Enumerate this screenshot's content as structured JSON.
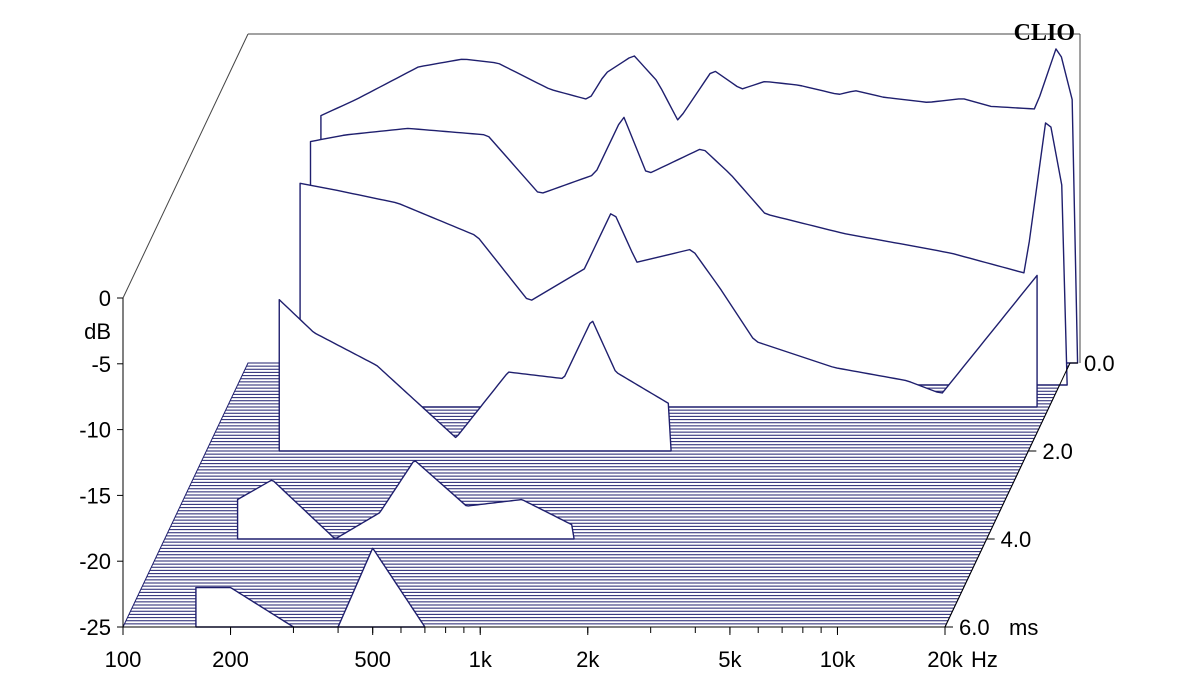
{
  "chart_data": {
    "type": "area",
    "subtype": "waterfall-3d",
    "brand": "CLIO",
    "x_unit": "Hz",
    "y_unit": "dB",
    "z_unit": "ms",
    "x_scale": "log",
    "xlim": [
      100,
      20000
    ],
    "ylim": [
      -25,
      0
    ],
    "zlim": [
      0,
      6
    ],
    "x_ticks": [
      {
        "value": 100,
        "label": "100"
      },
      {
        "value": 200,
        "label": "200"
      },
      {
        "value": 500,
        "label": "500"
      },
      {
        "value": 1000,
        "label": "1k"
      },
      {
        "value": 2000,
        "label": "2k"
      },
      {
        "value": 5000,
        "label": "5k"
      },
      {
        "value": 10000,
        "label": "10k"
      },
      {
        "value": 20000,
        "label": "20k"
      }
    ],
    "y_ticks": [
      {
        "value": 0,
        "label": "0"
      },
      {
        "value": -5,
        "label": "-5"
      },
      {
        "value": -10,
        "label": "-10"
      },
      {
        "value": -15,
        "label": "-15"
      },
      {
        "value": -20,
        "label": "-20"
      },
      {
        "value": -25,
        "label": "-25"
      }
    ],
    "z_ticks": [
      {
        "value": 0,
        "label": "0.0"
      },
      {
        "value": 2,
        "label": "2.0"
      },
      {
        "value": 4,
        "label": "4.0"
      },
      {
        "value": 6,
        "label": "6.0"
      }
    ],
    "slice_count": 84,
    "series": [
      {
        "time_ms": 0.0,
        "x": [
          160,
          200,
          300,
          400,
          500,
          700,
          900,
          1000,
          1200,
          1400,
          1600,
          2000,
          2400,
          2800,
          3500,
          4500,
          5000,
          6000,
          8000,
          10000,
          12000,
          16000,
          18500,
          21000
        ],
        "y": [
          -6.2,
          -5.0,
          -2.5,
          -1.9,
          -2.2,
          -4.2,
          -5.0,
          -3.0,
          -1.6,
          -3.6,
          -6.6,
          -2.7,
          -4.2,
          -3.6,
          -3.9,
          -4.6,
          -4.3,
          -4.8,
          -5.2,
          -4.9,
          -5.5,
          -5.7,
          -0.7,
          -6.6
        ]
      },
      {
        "time_ms": 0.5,
        "x": [
          160,
          200,
          300,
          500,
          700,
          1000,
          1200,
          1400,
          2000,
          2400,
          3000,
          5000,
          8000,
          10000,
          16000,
          18500,
          21000
        ],
        "y": [
          -6.5,
          -6.0,
          -5.5,
          -6.0,
          -10.5,
          -9.0,
          -4.5,
          -9.0,
          -7.0,
          -9.0,
          -12.0,
          -13.5,
          -14.5,
          -15.0,
          -16.5,
          -4.0,
          -12.0
        ]
      },
      {
        "time_ms": 1.0,
        "x": [
          160,
          200,
          300,
          500,
          700,
          1000,
          1200,
          1400,
          2000,
          2400,
          3000,
          5000,
          8000,
          10000,
          18500
        ],
        "y": [
          -8.0,
          -8.5,
          -9.5,
          -12.0,
          -17.0,
          -14.5,
          -10.0,
          -14.0,
          -13.0,
          -16.0,
          -20.0,
          -22.0,
          -23.0,
          -24.0,
          -15.0
        ]
      },
      {
        "time_ms": 2.0,
        "x": [
          160,
          200,
          300,
          500,
          700,
          1000,
          1200,
          1400,
          2000
        ],
        "y": [
          -13.5,
          -16.0,
          -18.5,
          -24.0,
          -19.0,
          -19.5,
          -15.0,
          -19.0,
          -21.5
        ]
      },
      {
        "time_ms": 4.0,
        "x": [
          160,
          200,
          300,
          400,
          500,
          700,
          1000,
          1400
        ],
        "y": [
          -22.0,
          -20.5,
          -25.0,
          -23.0,
          -19.0,
          -22.5,
          -22.0,
          -24.0
        ]
      },
      {
        "time_ms": 6.0,
        "x": [
          160,
          200,
          300,
          400,
          500,
          700
        ],
        "y": [
          -22.0,
          -22.0,
          -25.0,
          -25.0,
          -19.0,
          -25.0
        ]
      }
    ]
  }
}
